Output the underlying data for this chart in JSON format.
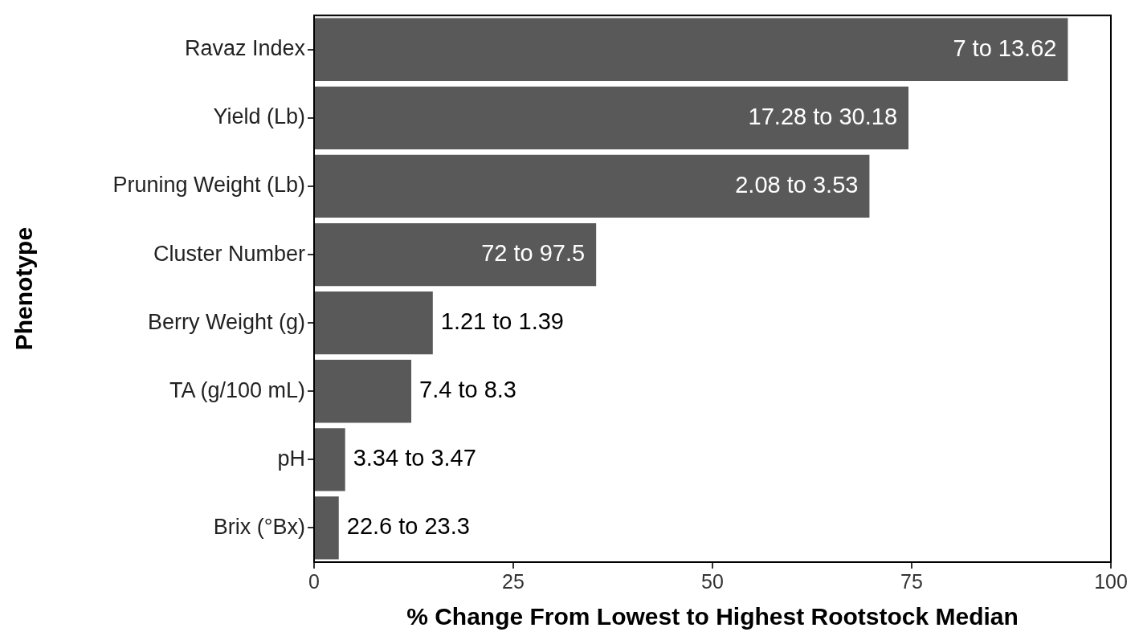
{
  "chart_data": {
    "type": "bar",
    "orientation": "horizontal",
    "xlabel": "% Change From Lowest to Highest Rootstock Median",
    "ylabel": "Phenotype",
    "categories": [
      "Ravaz Index",
      "Yield (Lb)",
      "Pruning Weight (Lb)",
      "Cluster Number",
      "Berry Weight (g)",
      "TA (g/100 mL)",
      "pH",
      "Brix (°Bx)"
    ],
    "values": [
      94.6,
      74.6,
      69.7,
      35.4,
      14.9,
      12.2,
      3.9,
      3.1
    ],
    "annotations": [
      {
        "text": "7 to 13.62",
        "x": 94.6,
        "y": "Ravaz Index"
      },
      {
        "text": "17.28 to 30.18",
        "x": 74.6,
        "y": "Yield (Lb)"
      },
      {
        "text": "2.08 to 3.53",
        "x": 69.7,
        "y": "Pruning Weight (Lb)"
      },
      {
        "text": "72 to 97.5",
        "x": 35.4,
        "y": "Cluster Number"
      },
      {
        "text": "1.21 to 1.39",
        "x": 14.9,
        "y": "Berry Weight (g)"
      },
      {
        "text": "7.4 to 8.3",
        "x": 12.2,
        "y": "TA (g/100 mL)"
      },
      {
        "text": "3.34 to 3.47",
        "x": 3.9,
        "y": "pH"
      },
      {
        "text": "22.6 to 23.3",
        "x": 3.1,
        "y": "Brix (°Bx)"
      }
    ],
    "color": "#595959",
    "xlim": [
      0,
      100
    ],
    "xticks": [
      0,
      25,
      50,
      75,
      100
    ],
    "grid": false,
    "legend": false
  }
}
